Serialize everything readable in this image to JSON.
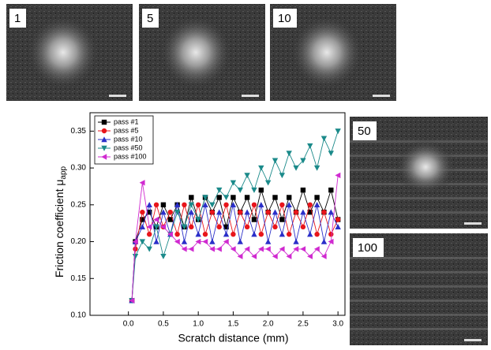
{
  "chart_data": {
    "type": "line",
    "xlabel": "Scratch distance (mm)",
    "ylabel": "Friction coefficient μ",
    "ylabel_sub": "app",
    "x": [
      0.05,
      0.1,
      0.2,
      0.3,
      0.4,
      0.5,
      0.6,
      0.7,
      0.8,
      0.9,
      1.0,
      1.1,
      1.2,
      1.3,
      1.4,
      1.5,
      1.6,
      1.7,
      1.8,
      1.9,
      2.0,
      2.1,
      2.2,
      2.3,
      2.4,
      2.5,
      2.6,
      2.7,
      2.8,
      2.9,
      3.0
    ],
    "series": [
      {
        "name": "pass #1",
        "color": "#000000",
        "marker": "square",
        "values": [
          0.12,
          0.2,
          0.23,
          0.24,
          0.22,
          0.25,
          0.23,
          0.25,
          0.22,
          0.26,
          0.23,
          0.26,
          0.24,
          0.26,
          0.22,
          0.26,
          0.24,
          0.26,
          0.23,
          0.27,
          0.24,
          0.26,
          0.23,
          0.26,
          0.24,
          0.27,
          0.24,
          0.26,
          0.24,
          0.27,
          0.23
        ]
      },
      {
        "name": "pass #5",
        "color": "#e8151b",
        "marker": "circle",
        "values": [
          0.12,
          0.19,
          0.24,
          0.21,
          0.25,
          0.22,
          0.24,
          0.21,
          0.25,
          0.22,
          0.25,
          0.21,
          0.24,
          0.22,
          0.25,
          0.21,
          0.24,
          0.22,
          0.25,
          0.21,
          0.24,
          0.22,
          0.25,
          0.21,
          0.24,
          0.22,
          0.25,
          0.21,
          0.24,
          0.21,
          0.23
        ]
      },
      {
        "name": "pass #10",
        "color": "#2b2fc9",
        "marker": "triangle-up",
        "values": [
          0.12,
          0.2,
          0.22,
          0.25,
          0.2,
          0.24,
          0.21,
          0.25,
          0.2,
          0.24,
          0.21,
          0.25,
          0.2,
          0.24,
          0.21,
          0.25,
          0.2,
          0.24,
          0.21,
          0.25,
          0.2,
          0.24,
          0.21,
          0.25,
          0.2,
          0.24,
          0.21,
          0.25,
          0.2,
          0.24,
          0.22
        ]
      },
      {
        "name": "pass #50",
        "color": "#1b8a8a",
        "marker": "triangle-down",
        "values": [
          0.12,
          0.18,
          0.2,
          0.19,
          0.22,
          0.18,
          0.21,
          0.24,
          0.22,
          0.25,
          0.23,
          0.26,
          0.25,
          0.27,
          0.26,
          0.28,
          0.27,
          0.29,
          0.27,
          0.3,
          0.28,
          0.31,
          0.29,
          0.32,
          0.3,
          0.31,
          0.33,
          0.3,
          0.34,
          0.32,
          0.35
        ]
      },
      {
        "name": "pass #100",
        "color": "#d02ad0",
        "marker": "triangle-left",
        "values": [
          0.12,
          0.2,
          0.28,
          0.22,
          0.23,
          0.22,
          0.21,
          0.2,
          0.19,
          0.19,
          0.2,
          0.2,
          0.19,
          0.19,
          0.2,
          0.19,
          0.18,
          0.19,
          0.18,
          0.19,
          0.19,
          0.18,
          0.19,
          0.18,
          0.19,
          0.19,
          0.18,
          0.19,
          0.18,
          0.2,
          0.29
        ]
      }
    ],
    "xlim": [
      -0.55,
      3.1
    ],
    "xticks": [
      {
        "value": 0,
        "label": "0.0"
      },
      0.5,
      {
        "value": 1,
        "label": "1.0"
      },
      1.5,
      {
        "value": 2,
        "label": "2.0"
      },
      2.5,
      {
        "value": 3,
        "label": "3.0"
      }
    ],
    "ylim": [
      0.1,
      0.375
    ],
    "yticks": [
      {
        "value": 0.1,
        "label": "0.10"
      },
      0.15,
      {
        "value": 0.2,
        "label": "0.20"
      },
      0.25,
      {
        "value": 0.3,
        "label": "0.30"
      },
      0.35
    ],
    "legend": "upper-left",
    "grid": false
  },
  "micrographs": [
    {
      "label": "1"
    },
    {
      "label": "5"
    },
    {
      "label": "10"
    },
    {
      "label": "50"
    },
    {
      "label": "100"
    }
  ]
}
